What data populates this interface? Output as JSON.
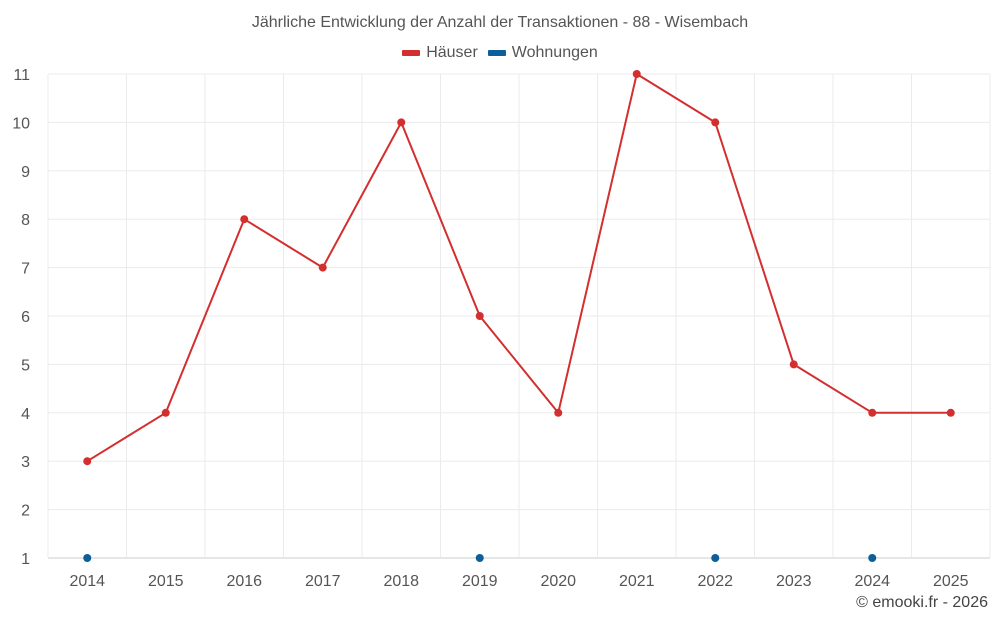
{
  "chart_data": {
    "type": "line",
    "title": "Jährliche Entwicklung der Anzahl der Transaktionen - 88 - Wisembach",
    "categories": [
      "2014",
      "2015",
      "2016",
      "2017",
      "2018",
      "2019",
      "2020",
      "2021",
      "2022",
      "2023",
      "2024",
      "2025"
    ],
    "series": [
      {
        "name": "Häuser",
        "color": "#d32f2f",
        "style": "line",
        "values": [
          3,
          4,
          8,
          7,
          10,
          6,
          4,
          11,
          10,
          5,
          4,
          4
        ]
      },
      {
        "name": "Wohnungen",
        "color": "#0d5f9a",
        "style": "points",
        "values": [
          1,
          null,
          null,
          null,
          null,
          1,
          null,
          null,
          1,
          null,
          1,
          null
        ]
      }
    ],
    "ylim": [
      1,
      11
    ],
    "yticks": [
      1,
      2,
      3,
      4,
      5,
      6,
      7,
      8,
      9,
      10,
      11
    ],
    "xlabel": "",
    "ylabel": "",
    "grid": true,
    "legend": "top-center"
  },
  "footer": {
    "copyright": "© emooki.fr - 2026"
  }
}
